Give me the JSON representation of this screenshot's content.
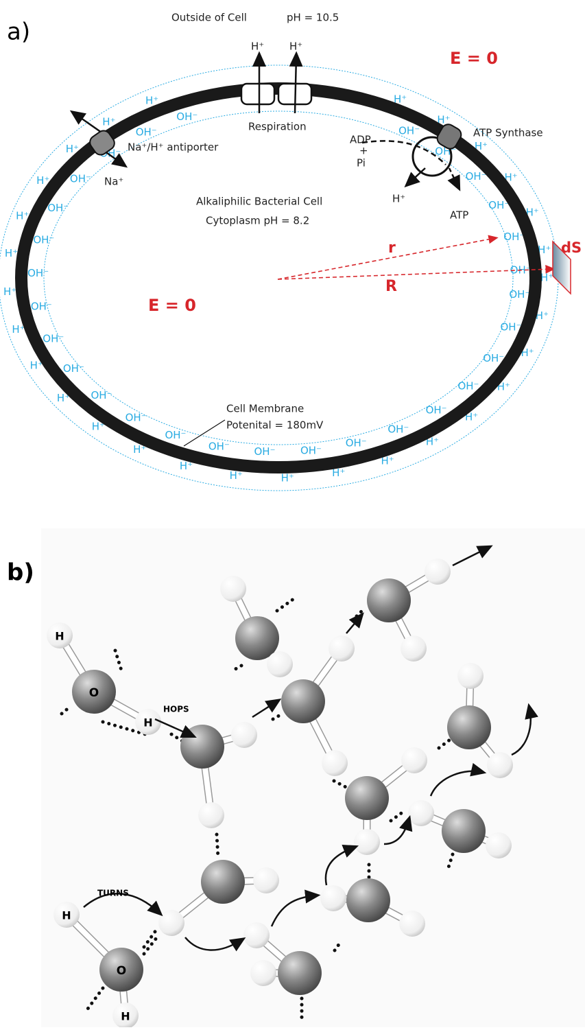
{
  "panel_a": {
    "label": "a)",
    "outside": "Outside of Cell",
    "outside_ph": "pH = 10.5",
    "proton": "H⁺",
    "hydroxide": "OH⁻",
    "respiration": "Respiration",
    "antiporter": "Na⁺/H⁺ antiporter",
    "sodium": "Na⁺",
    "atp_synthase": "ATP Synthase",
    "adp": "ADP",
    "plus": "+",
    "pi": "Pi",
    "atp": "ATP",
    "cell_title": "Alkaliphilic Bacterial Cell",
    "cytoplasm_ph": "Cytoplasm  pH = 8.2",
    "field_outside": "E = 0",
    "field_inside": "E = 0",
    "inner_radius": "r",
    "outer_radius": "R",
    "surface_element": "dS",
    "membrane": "Cell Membrane",
    "potential": "Potenital = 180mV"
  },
  "panel_b": {
    "label": "b)",
    "hops": "HOPS",
    "turns": "TURNS",
    "oxygen": "O",
    "hydrogen": "H"
  }
}
